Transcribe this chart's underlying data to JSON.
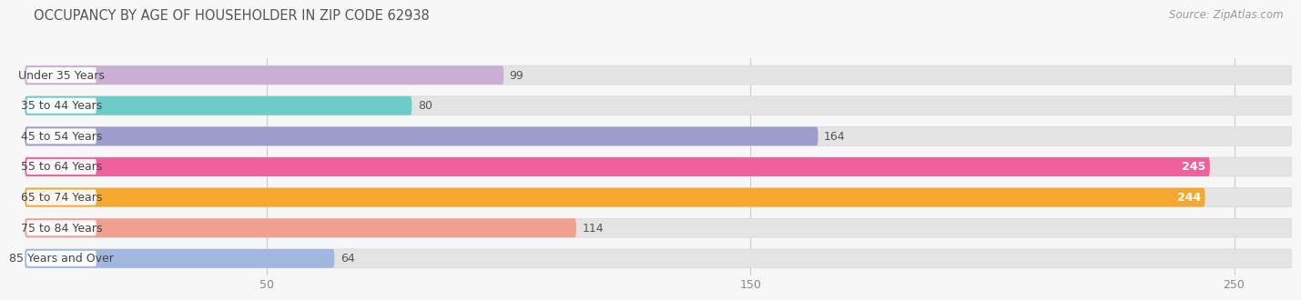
{
  "title": "OCCUPANCY BY AGE OF HOUSEHOLDER IN ZIP CODE 62938",
  "source": "Source: ZipAtlas.com",
  "categories": [
    "Under 35 Years",
    "35 to 44 Years",
    "45 to 54 Years",
    "55 to 64 Years",
    "65 to 74 Years",
    "75 to 84 Years",
    "85 Years and Over"
  ],
  "values": [
    99,
    80,
    164,
    245,
    244,
    114,
    64
  ],
  "bar_colors": [
    "#c9afd4",
    "#6dcbca",
    "#9d9dcf",
    "#f0609a",
    "#f4a830",
    "#f0a090",
    "#a0b8e0"
  ],
  "label_colors": [
    "#444433",
    "#444433",
    "#444433",
    "#ffffff",
    "#ffffff",
    "#444433",
    "#444433"
  ],
  "xlim": [
    0,
    262
  ],
  "xticks": [
    50,
    150,
    250
  ],
  "background_color": "#f7f7f7",
  "bar_bg_color": "#e4e4e4",
  "title_fontsize": 10.5,
  "source_fontsize": 8.5,
  "label_fontsize": 9,
  "value_fontsize": 9,
  "tick_fontsize": 9
}
